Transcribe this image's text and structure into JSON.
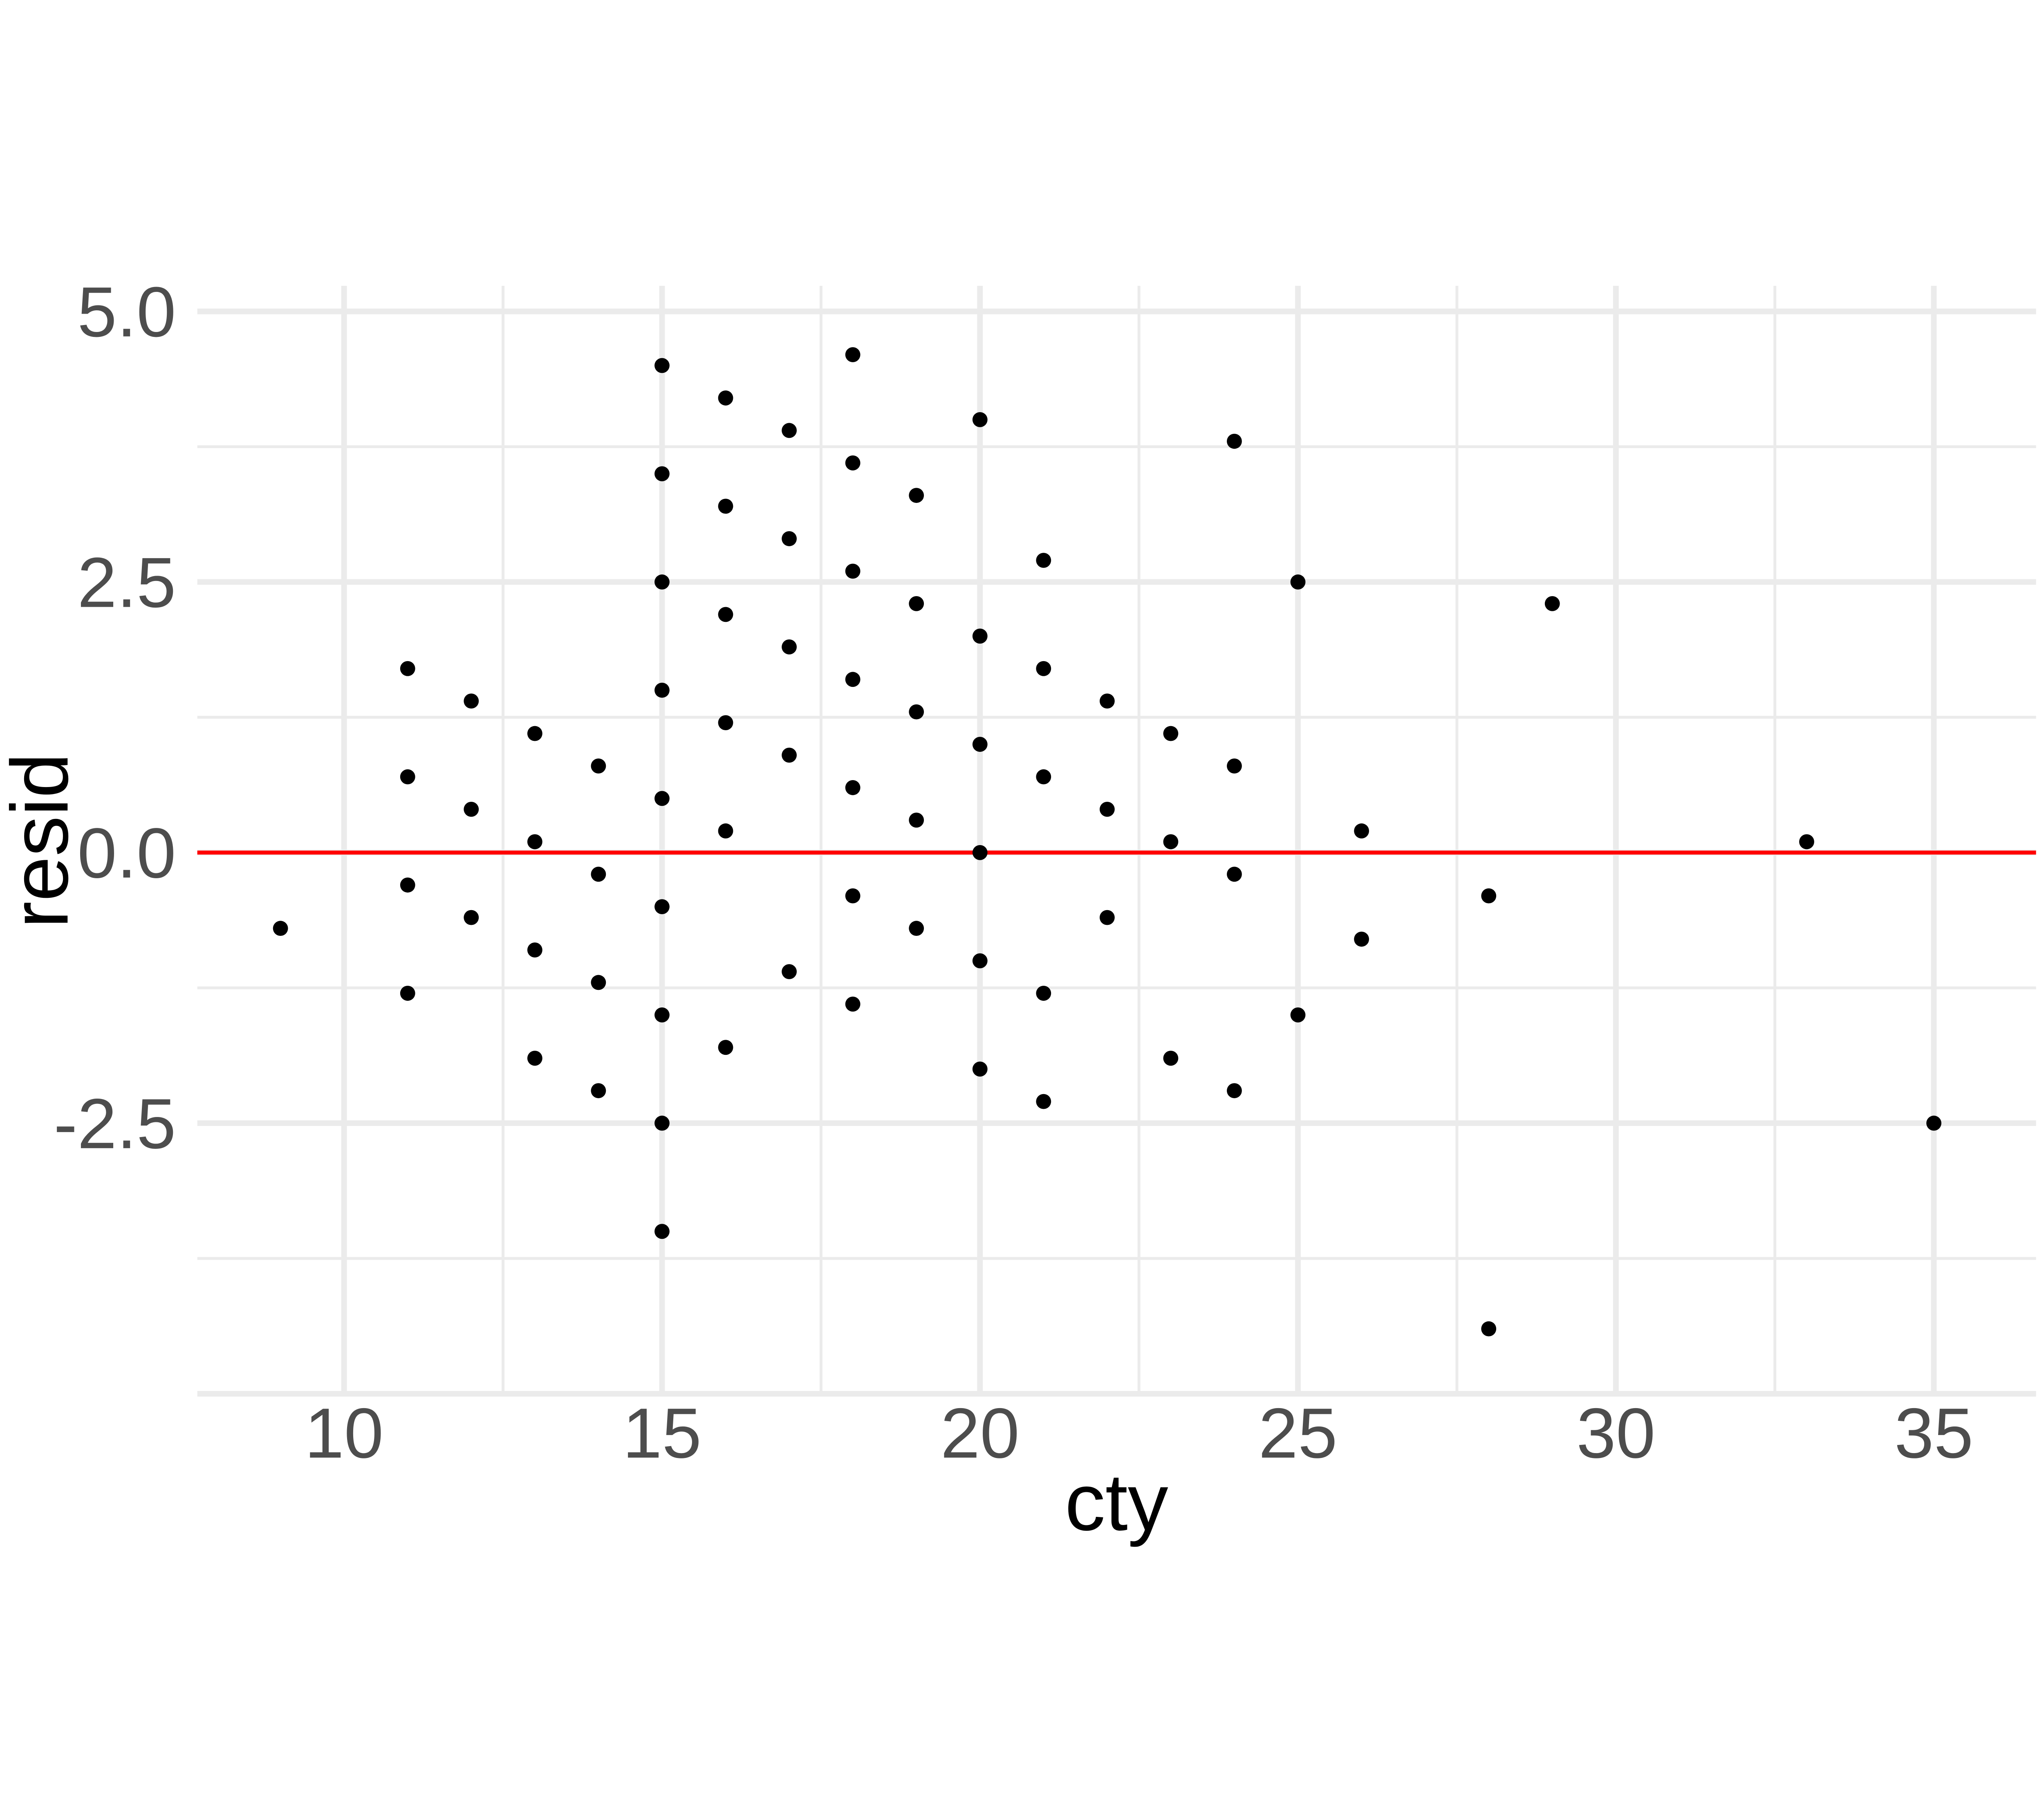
{
  "chart_data": {
    "type": "scatter",
    "xlabel": "cty",
    "ylabel": "resid",
    "x_axis": {
      "range": [
        7.692,
        36.607
      ],
      "ticks": [
        {
          "value": 10,
          "label": "10"
        },
        {
          "value": 15,
          "label": "15"
        },
        {
          "value": 20,
          "label": "20"
        },
        {
          "value": 25,
          "label": "25"
        },
        {
          "value": 30,
          "label": "30"
        },
        {
          "value": 35,
          "label": "35"
        }
      ],
      "minor_gridlines": [
        12.5,
        17.5,
        22.5,
        27.5,
        32.5
      ]
    },
    "y_axis": {
      "range": [
        -5.013,
        5.236
      ],
      "ticks": [
        {
          "value": 5.0,
          "label": "5.0"
        },
        {
          "value": 2.5,
          "label": "2.5"
        },
        {
          "value": 0.0,
          "label": "0.0"
        },
        {
          "value": -2.5,
          "label": "-2.5"
        }
      ],
      "unlabeled_gridlines": [
        -5.0
      ],
      "minor_gridlines": [
        3.75,
        1.25,
        -1.25,
        -3.75
      ]
    },
    "reference_line": {
      "y": 0,
      "color": "#FF0000"
    },
    "grid": true,
    "legend_position": "none",
    "point_color": "#000000",
    "colors": {
      "background": "#FFFFFF",
      "grid_major": "#EBEBEB",
      "grid_minor": "#EBEBEB",
      "axis_text": "#4D4D4D",
      "axis_title": "#000000",
      "reference_line": "#FF0000"
    },
    "points": [
      [
        9,
        -0.7
      ],
      [
        11,
        1.7
      ],
      [
        11,
        0.7
      ],
      [
        11,
        -0.3
      ],
      [
        11,
        -1.3
      ],
      [
        12,
        1.4
      ],
      [
        12,
        0.4
      ],
      [
        12,
        -0.6
      ],
      [
        13,
        1.1
      ],
      [
        13,
        0.1
      ],
      [
        13,
        -0.9
      ],
      [
        13,
        -1.9
      ],
      [
        14,
        0.8
      ],
      [
        14,
        -0.2
      ],
      [
        14,
        -1.2
      ],
      [
        14,
        -2.2
      ],
      [
        15,
        4.5
      ],
      [
        15,
        3.5
      ],
      [
        15,
        2.5
      ],
      [
        15,
        1.5
      ],
      [
        15,
        0.5
      ],
      [
        15,
        -0.5
      ],
      [
        15,
        -1.5
      ],
      [
        15,
        -2.5
      ],
      [
        15,
        -3.5
      ],
      [
        16,
        4.2
      ],
      [
        16,
        3.2
      ],
      [
        16,
        2.2
      ],
      [
        16,
        1.2
      ],
      [
        16,
        0.2
      ],
      [
        16,
        -1.8
      ],
      [
        17,
        3.9
      ],
      [
        17,
        2.9
      ],
      [
        17,
        1.9
      ],
      [
        17,
        0.9
      ],
      [
        17,
        -1.1
      ],
      [
        18,
        4.6
      ],
      [
        18,
        3.6
      ],
      [
        18,
        2.6
      ],
      [
        18,
        1.6
      ],
      [
        18,
        0.6
      ],
      [
        18,
        -0.4
      ],
      [
        18,
        -1.4
      ],
      [
        19,
        3.3
      ],
      [
        19,
        2.3
      ],
      [
        19,
        1.3
      ],
      [
        19,
        0.3
      ],
      [
        19,
        -0.7
      ],
      [
        20,
        4.0
      ],
      [
        20,
        2.0
      ],
      [
        20,
        1.0
      ],
      [
        20,
        0.0
      ],
      [
        20,
        -1.0
      ],
      [
        20,
        -2.0
      ],
      [
        21,
        2.7
      ],
      [
        21,
        1.7
      ],
      [
        21,
        0.7
      ],
      [
        21,
        -1.3
      ],
      [
        21,
        -2.3
      ],
      [
        22,
        1.4
      ],
      [
        22,
        0.4
      ],
      [
        22,
        -0.6
      ],
      [
        23,
        1.1
      ],
      [
        23,
        0.1
      ],
      [
        23,
        -1.9
      ],
      [
        24,
        3.8
      ],
      [
        24,
        0.8
      ],
      [
        24,
        -0.2
      ],
      [
        24,
        -2.2
      ],
      [
        25,
        2.5
      ],
      [
        25,
        -1.5
      ],
      [
        26,
        0.2
      ],
      [
        26,
        -0.8
      ],
      [
        28,
        -0.4
      ],
      [
        28,
        -4.4
      ],
      [
        29,
        2.3
      ],
      [
        33,
        0.1
      ],
      [
        35,
        -2.5
      ]
    ]
  }
}
